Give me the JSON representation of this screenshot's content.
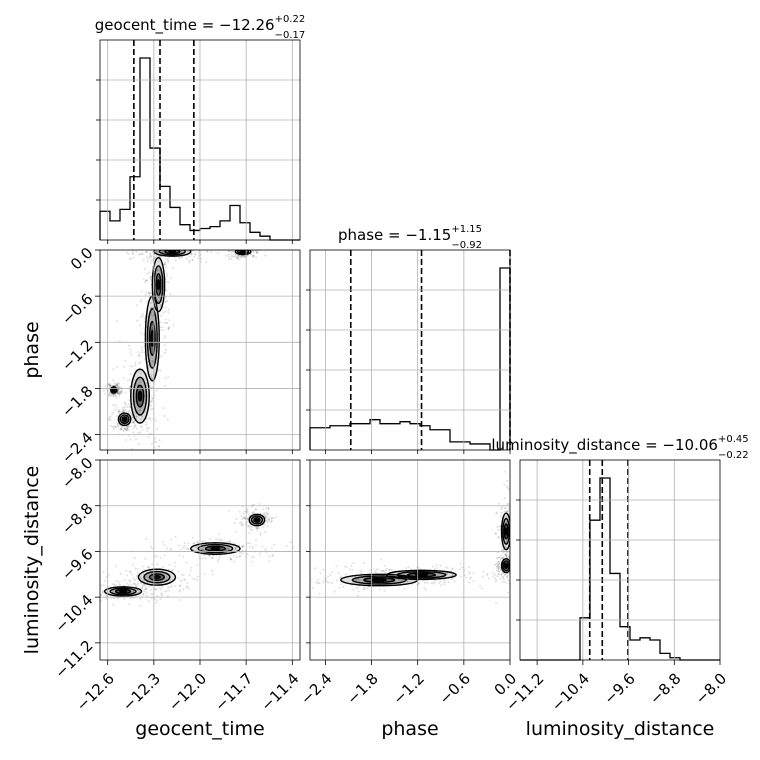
{
  "chart_data": {
    "type": "corner",
    "parameters": [
      "geocent_time",
      "phase",
      "luminosity_distance"
    ],
    "titles": [
      {
        "param": "geocent_time",
        "prefix": "geocent_time = ",
        "median": "−12.26",
        "upper": "+0.22",
        "lower": "−0.17"
      },
      {
        "param": "phase",
        "prefix": "phase = ",
        "median": "−1.15",
        "upper": "+1.15",
        "lower": "−0.92"
      },
      {
        "param": "luminosity_distance",
        "prefix": "luminosity_distance = ",
        "median": "−10.06",
        "upper": "+0.45",
        "lower": "−0.22"
      }
    ],
    "axes": {
      "geocent_time": {
        "range": [
          -12.65,
          -11.35
        ],
        "ticks": [
          -12.6,
          -12.3,
          -12.0,
          -11.7,
          -11.4
        ],
        "tick_labels": [
          "−12.6",
          "−12.3",
          "−12.0",
          "−11.7",
          "−11.4"
        ]
      },
      "phase": {
        "range": [
          -2.6,
          0.0
        ],
        "ticks": [
          -2.4,
          -1.8,
          -1.2,
          -0.6,
          0.0
        ],
        "tick_labels": [
          "−2.4",
          "−1.8",
          "−1.2",
          "−0.6",
          "0.0"
        ]
      },
      "luminosity_distance": {
        "range": [
          -11.5,
          -8.0
        ],
        "ticks": [
          -11.2,
          -10.4,
          -9.6,
          -8.8,
          -8.0
        ],
        "tick_labels": [
          "−11.2",
          "−10.4",
          "−9.6",
          "−8.8",
          "−8.0"
        ]
      }
    },
    "quantiles": {
      "geocent_time": [
        -12.43,
        -12.26,
        -12.04
      ],
      "phase": [
        -2.07,
        -1.15,
        0.0
      ],
      "luminosity_distance": [
        -10.28,
        -10.06,
        -9.61
      ]
    },
    "histograms": {
      "geocent_time": {
        "edges": [
          -12.65,
          -12.585,
          -12.52,
          -12.455,
          -12.39,
          -12.325,
          -12.26,
          -12.195,
          -12.13,
          -12.065,
          -12.0,
          -11.935,
          -11.87,
          -11.805,
          -11.74,
          -11.675,
          -11.61,
          -11.545,
          -11.48,
          -11.415,
          -11.35
        ],
        "counts": [
          0.15,
          0.1,
          0.16,
          0.33,
          0.95,
          0.48,
          0.28,
          0.17,
          0.08,
          0.05,
          0.06,
          0.07,
          0.1,
          0.18,
          0.09,
          0.04,
          0.02,
          0.0,
          0.0,
          0.0
        ]
      },
      "phase": {
        "edges": [
          -2.6,
          -2.47,
          -2.34,
          -2.21,
          -2.08,
          -1.95,
          -1.82,
          -1.69,
          -1.56,
          -1.43,
          -1.3,
          -1.17,
          -1.04,
          -0.91,
          -0.78,
          -0.65,
          -0.52,
          -0.39,
          -0.26,
          -0.13,
          0.0
        ],
        "counts": [
          0.11,
          0.11,
          0.12,
          0.12,
          0.13,
          0.13,
          0.15,
          0.13,
          0.13,
          0.14,
          0.13,
          0.12,
          0.1,
          0.1,
          0.04,
          0.04,
          0.03,
          0.03,
          0.0,
          0.9
        ]
      },
      "luminosity_distance": {
        "edges": [
          -11.5,
          -11.325,
          -11.15,
          -10.975,
          -10.8,
          -10.625,
          -10.45,
          -10.275,
          -10.1,
          -9.925,
          -9.75,
          -9.575,
          -9.4,
          -9.225,
          -9.05,
          -8.875,
          -8.7,
          -8.525,
          -8.35,
          -8.175,
          -8.0
        ],
        "counts": [
          0,
          0,
          0,
          0,
          0,
          0,
          0.19,
          0.63,
          0.82,
          0.39,
          0.15,
          0.09,
          0.1,
          0.09,
          0.03,
          0.01,
          0.0,
          0.0,
          0.0,
          0.0
        ]
      }
    },
    "contour_regions": {
      "phase_vs_geocent_time": [
        {
          "x": -12.27,
          "y": -0.45,
          "rx": 0.04,
          "ry": 0.35
        },
        {
          "x": -12.31,
          "y": -1.15,
          "rx": 0.045,
          "ry": 0.55
        },
        {
          "x": -12.39,
          "y": -1.9,
          "rx": 0.06,
          "ry": 0.35
        },
        {
          "x": -12.49,
          "y": -2.2,
          "rx": 0.04,
          "ry": 0.08
        },
        {
          "x": -12.56,
          "y": -1.82,
          "rx": 0.02,
          "ry": 0.04
        },
        {
          "x": -12.18,
          "y": -0.02,
          "rx": 0.12,
          "ry": 0.06
        },
        {
          "x": -11.72,
          "y": -0.02,
          "rx": 0.05,
          "ry": 0.04
        }
      ],
      "distance_vs_geocent_time": [
        {
          "x": -12.28,
          "y": -10.05,
          "rx": 0.12,
          "ry": 0.14
        },
        {
          "x": -12.5,
          "y": -10.3,
          "rx": 0.12,
          "ry": 0.08
        },
        {
          "x": -11.9,
          "y": -9.55,
          "rx": 0.16,
          "ry": 0.1
        },
        {
          "x": -11.63,
          "y": -9.05,
          "rx": 0.05,
          "ry": 0.1
        }
      ],
      "distance_vs_phase": [
        {
          "x": -1.7,
          "y": -10.1,
          "rx": 0.5,
          "ry": 0.1
        },
        {
          "x": -1.15,
          "y": -10.01,
          "rx": 0.45,
          "ry": 0.08
        },
        {
          "x": -0.05,
          "y": -9.25,
          "rx": 0.06,
          "ry": 0.32
        },
        {
          "x": -0.05,
          "y": -9.85,
          "rx": 0.06,
          "ry": 0.12
        }
      ]
    }
  }
}
